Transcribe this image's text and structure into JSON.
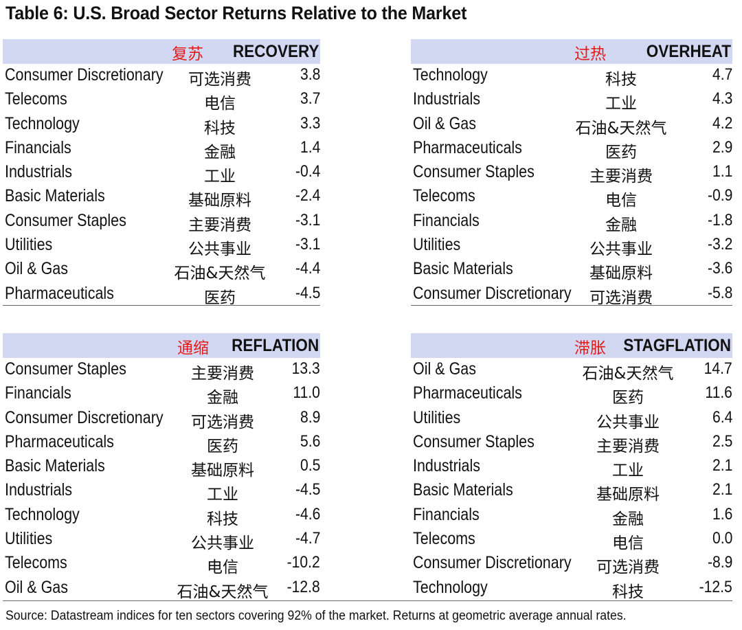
{
  "title": "Table 6: U.S. Broad Sector Returns Relative to the Market",
  "source": "Source: Datastream indices for ten sectors covering 92% of the market. Returns at geometric average annual rates.",
  "header_bg": "#d2d8f1",
  "cn_color": "#e41a1a",
  "recovery": {
    "cn": "复苏",
    "en": "RECOVERY",
    "rows": [
      {
        "name": "Consumer Discretionary",
        "zh": "可选消费",
        "value": "3.8"
      },
      {
        "name": "Telecoms",
        "zh": "电信",
        "value": "3.7"
      },
      {
        "name": "Technology",
        "zh": "科技",
        "value": "3.3"
      },
      {
        "name": "Financials",
        "zh": "金融",
        "value": "1.4"
      },
      {
        "name": "Industrials",
        "zh": "工业",
        "value": "-0.4"
      },
      {
        "name": "Basic Materials",
        "zh": "基础原料",
        "value": "-2.4"
      },
      {
        "name": "Consumer Staples",
        "zh": "主要消费",
        "value": "-3.1"
      },
      {
        "name": "Utilities",
        "zh": "公共事业",
        "value": "-3.1"
      },
      {
        "name": "Oil & Gas",
        "zh": "石油&天然气",
        "value": "-4.4"
      },
      {
        "name": "Pharmaceuticals",
        "zh": "医药",
        "value": "-4.5"
      }
    ]
  },
  "overheat": {
    "cn": "过热",
    "en": "OVERHEAT",
    "rows": [
      {
        "name": "Technology",
        "zh": "科技",
        "value": "4.7"
      },
      {
        "name": "Industrials",
        "zh": "工业",
        "value": "4.3"
      },
      {
        "name": "Oil & Gas",
        "zh": "石油&天然气",
        "value": "4.2"
      },
      {
        "name": "Pharmaceuticals",
        "zh": "医药",
        "value": "2.9"
      },
      {
        "name": "Consumer Staples",
        "zh": "主要消费",
        "value": "1.1"
      },
      {
        "name": "Telecoms",
        "zh": "电信",
        "value": "-0.9"
      },
      {
        "name": "Financials",
        "zh": "金融",
        "value": "-1.8"
      },
      {
        "name": "Utilities",
        "zh": "公共事业",
        "value": "-3.2"
      },
      {
        "name": "Basic Materials",
        "zh": "基础原料",
        "value": "-3.6"
      },
      {
        "name": "Consumer Discretionary",
        "zh": "可选消费",
        "value": "-5.8"
      }
    ]
  },
  "reflation": {
    "cn": "通缩",
    "en": "REFLATION",
    "rows": [
      {
        "name": "Consumer Staples",
        "zh": "主要消费",
        "value": "13.3"
      },
      {
        "name": "Financials",
        "zh": "金融",
        "value": "11.0"
      },
      {
        "name": "Consumer Discretionary",
        "zh": "可选消费",
        "value": "8.9"
      },
      {
        "name": "Pharmaceuticals",
        "zh": "医药",
        "value": "5.6"
      },
      {
        "name": "Basic Materials",
        "zh": "基础原料",
        "value": "0.5"
      },
      {
        "name": "Industrials",
        "zh": "工业",
        "value": "-4.5"
      },
      {
        "name": "Technology",
        "zh": "科技",
        "value": "-4.6"
      },
      {
        "name": "Utilities",
        "zh": "公共事业",
        "value": "-4.7"
      },
      {
        "name": "Telecoms",
        "zh": "电信",
        "value": "-10.2"
      },
      {
        "name": "Oil & Gas",
        "zh": "石油&天然气",
        "value": "-12.8"
      }
    ]
  },
  "stagflation": {
    "cn": "滞胀",
    "en": "STAGFLATION",
    "rows": [
      {
        "name": "Oil & Gas",
        "zh": "石油&天然气",
        "value": "14.7"
      },
      {
        "name": "Pharmaceuticals",
        "zh": "医药",
        "value": "11.6"
      },
      {
        "name": "Utilities",
        "zh": "公共事业",
        "value": "6.4"
      },
      {
        "name": "Consumer Staples",
        "zh": "主要消费",
        "value": "2.5"
      },
      {
        "name": "Industrials",
        "zh": "工业",
        "value": "2.1"
      },
      {
        "name": "Basic Materials",
        "zh": "基础原料",
        "value": "2.1"
      },
      {
        "name": "Financials",
        "zh": "金融",
        "value": "1.6"
      },
      {
        "name": "Telecoms",
        "zh": "电信",
        "value": "0.0"
      },
      {
        "name": "Consumer Discretionary",
        "zh": "可选消费",
        "value": "-8.9"
      },
      {
        "name": "Technology",
        "zh": "科技",
        "value": "-12.5"
      }
    ]
  }
}
